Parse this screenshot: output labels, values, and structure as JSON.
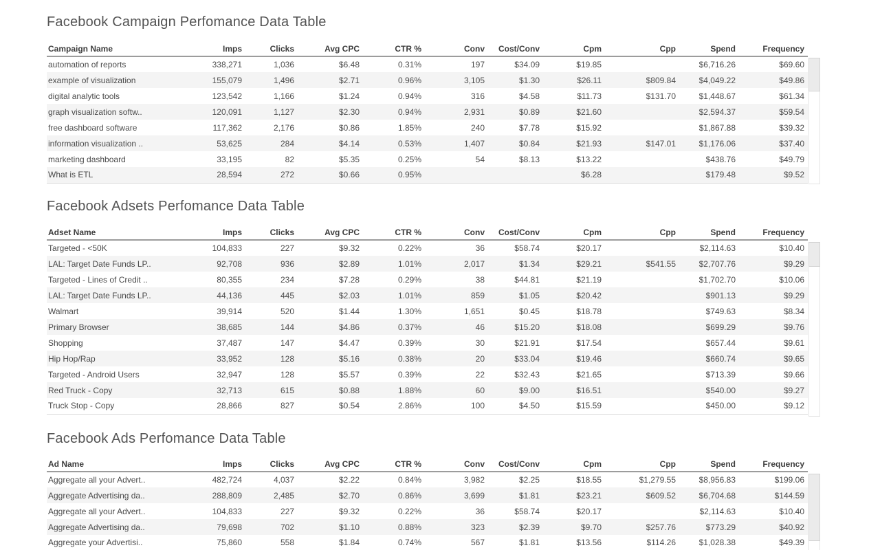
{
  "theme": {
    "background": "#ffffff",
    "title_color": "#545454",
    "header_text_color": "#3d3d3d",
    "body_text_color": "#4d4d4d",
    "row_stripe_color": "#f4f4f4",
    "header_rule_color": "#9c9c9c"
  },
  "tables": [
    {
      "title": "Facebook Campaign Perfomance Data Table",
      "headers": [
        "Campaign Name",
        "Imps",
        "Clicks",
        "Avg CPC",
        "CTR %",
        "Conv",
        "Cost/Conv",
        "Cpm",
        "Cpp",
        "Spend",
        "Frequency"
      ],
      "rows": [
        [
          "automation of reports",
          "338,271",
          "1,036",
          "$6.48",
          "0.31%",
          "197",
          "$34.09",
          "$19.85",
          "",
          "$6,716.26",
          "$69.60"
        ],
        [
          "example of visualization",
          "155,079",
          "1,496",
          "$2.71",
          "0.96%",
          "3,105",
          "$1.30",
          "$26.11",
          "$809.84",
          "$4,049.22",
          "$49.86"
        ],
        [
          "digital analytic tools",
          "123,542",
          "1,166",
          "$1.24",
          "0.94%",
          "316",
          "$4.58",
          "$11.73",
          "$131.70",
          "$1,448.67",
          "$61.34"
        ],
        [
          "graph visualization softw..",
          "120,091",
          "1,127",
          "$2.30",
          "0.94%",
          "2,931",
          "$0.89",
          "$21.60",
          "",
          "$2,594.37",
          "$59.54"
        ],
        [
          "free dashboard software",
          "117,362",
          "2,176",
          "$0.86",
          "1.85%",
          "240",
          "$7.78",
          "$15.92",
          "",
          "$1,867.88",
          "$39.32"
        ],
        [
          "information visualization ..",
          "53,625",
          "284",
          "$4.14",
          "0.53%",
          "1,407",
          "$0.84",
          "$21.93",
          "$147.01",
          "$1,176.06",
          "$37.40"
        ],
        [
          "marketing dashboard",
          "33,195",
          "82",
          "$5.35",
          "0.25%",
          "54",
          "$8.13",
          "$13.22",
          "",
          "$438.76",
          "$49.79"
        ],
        [
          "What is ETL",
          "28,594",
          "272",
          "$0.66",
          "0.95%",
          "",
          "",
          "$6.28",
          "",
          "$179.48",
          "$9.52"
        ]
      ]
    },
    {
      "title": "Facebook Adsets Perfomance Data Table",
      "headers": [
        "Adset Name",
        "Imps",
        "Clicks",
        "Avg CPC",
        "CTR %",
        "Conv",
        "Cost/Conv",
        "Cpm",
        "Cpp",
        "Spend",
        "Frequency"
      ],
      "rows": [
        [
          "Targeted - <50K",
          "104,833",
          "227",
          "$9.32",
          "0.22%",
          "36",
          "$58.74",
          "$20.17",
          "",
          "$2,114.63",
          "$10.40"
        ],
        [
          "LAL: Target Date Funds LP..",
          "92,708",
          "936",
          "$2.89",
          "1.01%",
          "2,017",
          "$1.34",
          "$29.21",
          "$541.55",
          "$2,707.76",
          "$9.29"
        ],
        [
          "Targeted - Lines of Credit ..",
          "80,355",
          "234",
          "$7.28",
          "0.29%",
          "38",
          "$44.81",
          "$21.19",
          "",
          "$1,702.70",
          "$10.06"
        ],
        [
          "LAL: Target Date Funds LP..",
          "44,136",
          "445",
          "$2.03",
          "1.01%",
          "859",
          "$1.05",
          "$20.42",
          "",
          "$901.13",
          "$9.29"
        ],
        [
          "Walmart",
          "39,914",
          "520",
          "$1.44",
          "1.30%",
          "1,651",
          "$0.45",
          "$18.78",
          "",
          "$749.63",
          "$8.34"
        ],
        [
          "Primary Browser",
          "38,685",
          "144",
          "$4.86",
          "0.37%",
          "46",
          "$15.20",
          "$18.08",
          "",
          "$699.29",
          "$9.76"
        ],
        [
          "Shopping",
          "37,487",
          "147",
          "$4.47",
          "0.39%",
          "30",
          "$21.91",
          "$17.54",
          "",
          "$657.44",
          "$9.61"
        ],
        [
          "Hip Hop/Rap",
          "33,952",
          "128",
          "$5.16",
          "0.38%",
          "20",
          "$33.04",
          "$19.46",
          "",
          "$660.74",
          "$9.65"
        ],
        [
          "Targeted - Android Users",
          "32,947",
          "128",
          "$5.57",
          "0.39%",
          "22",
          "$32.43",
          "$21.65",
          "",
          "$713.39",
          "$9.66"
        ],
        [
          "Red Truck - Copy",
          "32,713",
          "615",
          "$0.88",
          "1.88%",
          "60",
          "$9.00",
          "$16.51",
          "",
          "$540.00",
          "$9.27"
        ],
        [
          "Truck Stop - Copy",
          "28,866",
          "827",
          "$0.54",
          "2.86%",
          "100",
          "$4.50",
          "$15.59",
          "",
          "$450.00",
          "$9.12"
        ]
      ]
    },
    {
      "title": "Facebook Ads Perfomance Data Table",
      "headers": [
        "Ad Name",
        "Imps",
        "Clicks",
        "Avg CPC",
        "CTR %",
        "Conv",
        "Cost/Conv",
        "Cpm",
        "Cpp",
        "Spend",
        "Frequency"
      ],
      "rows": [
        [
          "Aggregate all your Advert..",
          "482,724",
          "4,037",
          "$2.22",
          "0.84%",
          "3,982",
          "$2.25",
          "$18.55",
          "$1,279.55",
          "$8,956.83",
          "$199.06"
        ],
        [
          "Aggregate Advertising da..",
          "288,809",
          "2,485",
          "$2.70",
          "0.86%",
          "3,699",
          "$1.81",
          "$23.21",
          "$609.52",
          "$6,704.68",
          "$144.59"
        ],
        [
          "Aggregate all your Advert..",
          "104,833",
          "227",
          "$9.32",
          "0.22%",
          "36",
          "$58.74",
          "$20.17",
          "",
          "$2,114.63",
          "$10.40"
        ],
        [
          "Aggregate Advertising da..",
          "79,698",
          "702",
          "$1.10",
          "0.88%",
          "323",
          "$2.39",
          "$9.70",
          "$257.76",
          "$773.29",
          "$40.92"
        ],
        [
          "Aggregate your Advertisi..",
          "75,860",
          "558",
          "$1.84",
          "0.74%",
          "567",
          "$1.81",
          "$13.56",
          "$114.26",
          "$1,028.38",
          "$49.39"
        ]
      ]
    }
  ]
}
